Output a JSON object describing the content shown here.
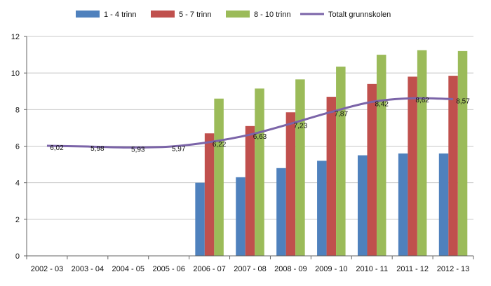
{
  "chart_data": {
    "type": "bar",
    "categories": [
      "2002 - 03",
      "2003 - 04",
      "2004 - 05",
      "2005 - 06",
      "2006 - 07",
      "2007 - 08",
      "2008 - 09",
      "2009 - 10",
      "2010 - 11",
      "2011 - 12",
      "2012 - 13"
    ],
    "series": [
      {
        "name": "1 - 4 trinn",
        "color": "#4f81bd",
        "values": [
          null,
          null,
          null,
          null,
          4.0,
          4.3,
          4.8,
          5.2,
          5.5,
          5.6,
          5.6
        ]
      },
      {
        "name": "5 - 7 trinn",
        "color": "#c0504d",
        "values": [
          null,
          null,
          null,
          null,
          6.7,
          7.1,
          7.85,
          8.7,
          9.4,
          9.8,
          9.85
        ]
      },
      {
        "name": "8 - 10 trinn",
        "color": "#9bbb59",
        "values": [
          null,
          null,
          null,
          null,
          8.6,
          9.15,
          9.65,
          10.35,
          11.0,
          11.25,
          11.2
        ]
      }
    ],
    "line": {
      "name": "Totalt grunnskolen",
      "color": "#7b64a8",
      "values": [
        6.02,
        5.98,
        5.93,
        5.97,
        6.22,
        6.63,
        7.23,
        7.87,
        8.42,
        8.62,
        8.57
      ],
      "labels": [
        "6,02",
        "5,98",
        "5,93",
        "5,97",
        "6,22",
        "6,63",
        "7,23",
        "7,87",
        "8,42",
        "8,62",
        "8,57"
      ]
    },
    "ylim": [
      0,
      12
    ],
    "yticks": [
      0,
      2,
      4,
      6,
      8,
      10,
      12
    ],
    "grid": true,
    "legend_position": "top",
    "title": "",
    "xlabel": "",
    "ylabel": ""
  }
}
